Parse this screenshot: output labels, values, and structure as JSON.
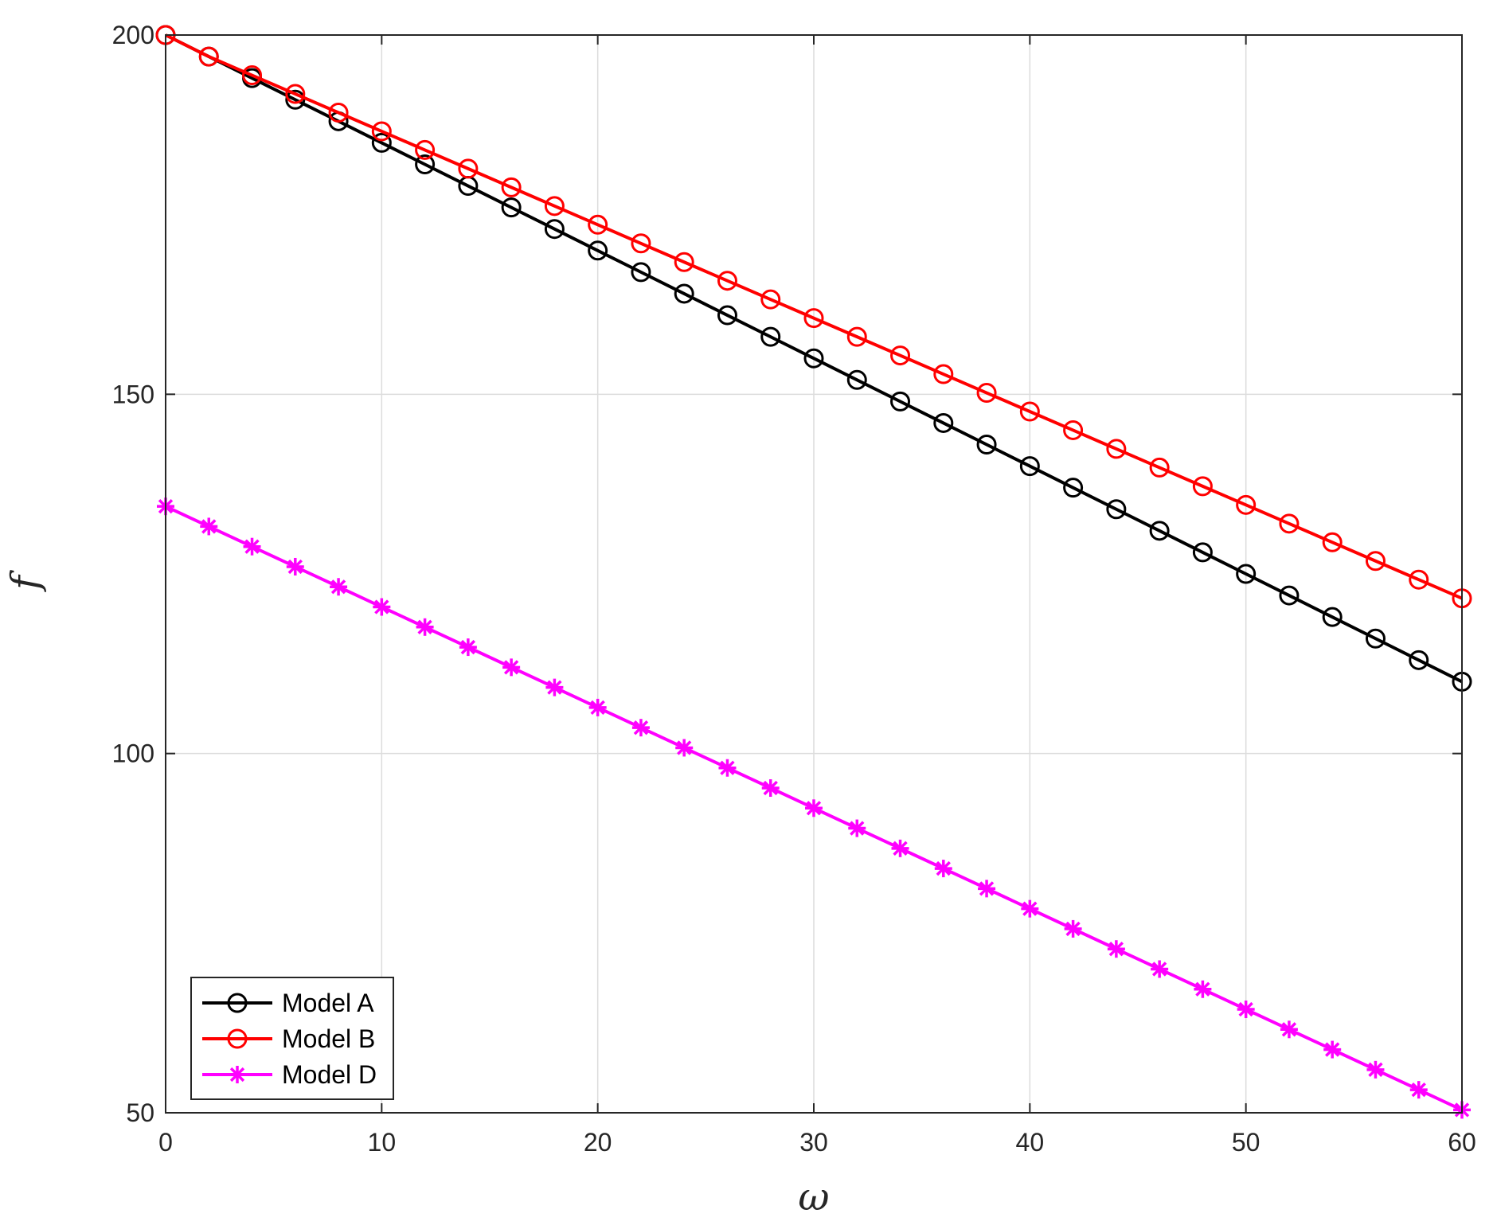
{
  "chart_data": {
    "type": "line",
    "title": "",
    "xlabel": "ω",
    "ylabel": "f",
    "xlim": [
      0,
      60
    ],
    "ylim": [
      50,
      200
    ],
    "xticks": [
      "0",
      "10",
      "20",
      "30",
      "40",
      "50",
      "60"
    ],
    "yticks": [
      "50",
      "100",
      "150",
      "200"
    ],
    "grid": true,
    "legend_position": "bottom-left",
    "x": [
      0,
      2,
      4,
      6,
      8,
      10,
      12,
      14,
      16,
      18,
      20,
      22,
      24,
      26,
      28,
      30,
      32,
      34,
      36,
      38,
      40,
      42,
      44,
      46,
      48,
      50,
      52,
      54,
      56,
      58,
      60
    ],
    "series": [
      {
        "name": "Model A",
        "color": "#000000",
        "marker": "circle",
        "values": [
          200,
          197,
          194,
          191,
          188,
          185,
          182,
          179,
          176,
          173,
          170,
          167,
          164,
          161,
          158,
          155,
          152,
          149,
          146,
          143,
          140,
          137,
          134,
          131,
          128,
          125,
          122,
          119,
          116,
          113,
          110
        ]
      },
      {
        "name": "Model B",
        "color": "#ff0000",
        "marker": "circle",
        "values": [
          200,
          197,
          194.4,
          191.8,
          189.2,
          186.6,
          184,
          181.4,
          178.8,
          176.2,
          173.6,
          171,
          168.4,
          165.8,
          163.2,
          160.6,
          158,
          155.4,
          152.8,
          150.2,
          147.6,
          145,
          142.4,
          139.8,
          137.2,
          134.6,
          132,
          129.4,
          126.8,
          124.2,
          121.6
        ]
      },
      {
        "name": "Model D",
        "color": "#ff00ff",
        "marker": "asterisk",
        "values": [
          134.4,
          131.6,
          128.8,
          126,
          123.2,
          120.4,
          117.6,
          114.8,
          112,
          109.2,
          106.4,
          103.6,
          100.8,
          98,
          95.2,
          92.4,
          89.6,
          86.8,
          84,
          81.2,
          78.4,
          75.6,
          72.8,
          70,
          67.2,
          64.4,
          61.6,
          58.8,
          56,
          53.2,
          50.4
        ]
      }
    ]
  }
}
